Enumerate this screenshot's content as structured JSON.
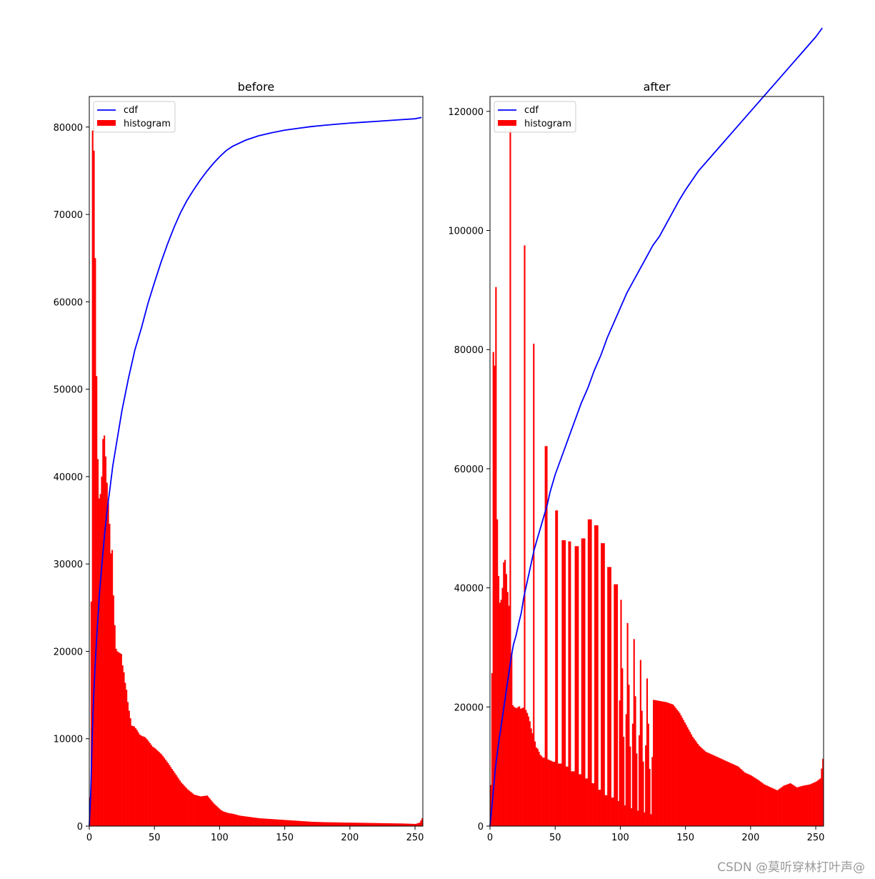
{
  "chart_data": [
    {
      "type": "bar",
      "title": "before",
      "xlim": [
        0,
        256
      ],
      "ylim": [
        0,
        83500
      ],
      "xticks": [
        0,
        50,
        100,
        150,
        200,
        250
      ],
      "yticks": [
        0,
        10000,
        20000,
        30000,
        40000,
        50000,
        60000,
        70000,
        80000
      ],
      "legend": {
        "placement": "top-left",
        "entries": [
          "cdf",
          "histogram"
        ]
      },
      "colors": {
        "cdf": "#0000ff",
        "histogram": "#ff0000"
      },
      "series": [
        {
          "name": "histogram",
          "kind": "bar",
          "x": [
            0,
            1,
            2,
            3,
            4,
            5,
            6,
            7,
            8,
            9,
            10,
            11,
            12,
            13,
            14,
            15,
            16,
            17,
            18,
            19,
            20,
            21,
            22,
            23,
            24,
            25,
            26,
            27,
            28,
            29,
            30,
            32,
            34,
            36,
            38,
            40,
            42,
            44,
            46,
            48,
            50,
            55,
            60,
            65,
            70,
            75,
            80,
            85,
            90,
            95,
            100,
            102,
            104,
            106,
            110,
            115,
            120,
            130,
            140,
            150,
            160,
            170,
            180,
            200,
            220,
            240,
            250,
            253,
            255
          ],
          "values": [
            3300,
            25700,
            79600,
            77300,
            65000,
            51500,
            42000,
            37500,
            38000,
            40000,
            44300,
            44700,
            42300,
            39300,
            37000,
            34600,
            31200,
            31600,
            26400,
            23000,
            20300,
            20000,
            19900,
            19800,
            19700,
            18400,
            17600,
            16400,
            15600,
            14200,
            13200,
            11500,
            11400,
            11000,
            10500,
            10300,
            10200,
            9900,
            9500,
            9100,
            8900,
            8200,
            7200,
            6100,
            5000,
            4200,
            3600,
            3400,
            3500,
            2600,
            1900,
            1700,
            1600,
            1500,
            1400,
            1200,
            1100,
            900,
            800,
            700,
            600,
            500,
            450,
            400,
            350,
            300,
            250,
            400,
            900
          ]
        },
        {
          "name": "cdf",
          "kind": "line",
          "x": [
            0,
            1,
            2,
            3,
            4,
            5,
            6,
            8,
            10,
            12,
            14,
            16,
            18,
            20,
            25,
            30,
            35,
            40,
            45,
            50,
            55,
            60,
            65,
            70,
            75,
            80,
            85,
            90,
            95,
            100,
            105,
            110,
            120,
            130,
            140,
            150,
            160,
            170,
            180,
            190,
            200,
            210,
            220,
            230,
            240,
            250,
            255
          ],
          "values": [
            100,
            3300,
            9000,
            13500,
            17000,
            19800,
            22400,
            27000,
            30500,
            33800,
            36500,
            38800,
            41200,
            43000,
            47500,
            51200,
            54500,
            57000,
            59800,
            62200,
            64500,
            66600,
            68500,
            70200,
            71600,
            72800,
            73900,
            74900,
            75800,
            76600,
            77300,
            77800,
            78500,
            79000,
            79350,
            79650,
            79850,
            80050,
            80200,
            80330,
            80450,
            80550,
            80650,
            80750,
            80850,
            80950,
            81100
          ]
        }
      ]
    },
    {
      "type": "bar",
      "title": "after",
      "xlim": [
        0,
        256
      ],
      "ylim": [
        0,
        122500
      ],
      "xticks": [
        0,
        50,
        100,
        150,
        200,
        250
      ],
      "yticks": [
        0,
        20000,
        40000,
        60000,
        80000,
        100000,
        120000
      ],
      "legend": {
        "placement": "top-left",
        "entries": [
          "cdf",
          "histogram"
        ]
      },
      "colors": {
        "cdf": "#0000ff",
        "histogram": "#ff0000"
      },
      "series": [
        {
          "name": "histogram",
          "kind": "bar",
          "x": [
            0,
            1,
            2,
            3,
            4,
            5,
            6,
            7,
            8,
            9,
            10,
            11,
            12,
            13,
            14,
            15,
            16,
            17,
            18,
            19,
            20,
            21,
            22,
            23,
            24,
            25,
            26,
            27,
            28,
            29,
            30,
            31,
            32,
            33,
            34,
            35,
            36,
            38,
            40,
            42,
            44,
            46,
            48,
            50,
            52,
            55,
            58,
            60,
            62,
            65,
            68,
            70,
            73,
            75,
            78,
            80,
            83,
            85,
            88,
            90,
            93,
            95,
            98,
            100,
            103,
            105,
            108,
            110,
            113,
            115,
            118,
            120,
            123,
            125,
            130,
            135,
            140,
            145,
            150,
            155,
            160,
            165,
            170,
            175,
            180,
            185,
            190,
            195,
            200,
            205,
            210,
            215,
            220,
            225,
            230,
            235,
            240,
            245,
            250,
            253,
            255
          ],
          "values": [
            6900,
            25700,
            79600,
            77300,
            90500,
            51500,
            42000,
            37500,
            38000,
            40000,
            44300,
            44700,
            42300,
            39300,
            37000,
            117000,
            29000,
            20300,
            20000,
            19900,
            19800,
            20000,
            20100,
            19700,
            19800,
            19900,
            97500,
            19500,
            19000,
            18400,
            17600,
            16400,
            15600,
            81000,
            14200,
            13200,
            13000,
            12000,
            11500,
            63800,
            11200,
            11000,
            10800,
            53000,
            10500,
            48000,
            10000,
            47800,
            9200,
            47000,
            8700,
            48300,
            8000,
            51500,
            7200,
            50500,
            6100,
            47500,
            5200,
            43500,
            4800,
            40600,
            4200,
            38000,
            3500,
            34100,
            3000,
            31400,
            2600,
            27900,
            2300,
            24800,
            2000,
            21200,
            21000,
            20800,
            20400,
            19000,
            17000,
            15000,
            13500,
            12500,
            12000,
            11500,
            11000,
            10500,
            10000,
            9000,
            8500,
            7800,
            7000,
            6500,
            6000,
            6800,
            7200,
            6500,
            6800,
            7000,
            7500,
            8000,
            11300
          ]
        },
        {
          "name": "cdf",
          "kind": "line",
          "x": [
            0,
            2,
            4,
            6,
            8,
            10,
            12,
            14,
            16,
            18,
            20,
            22,
            24,
            26,
            28,
            30,
            32,
            34,
            36,
            38,
            40,
            42,
            44,
            46,
            48,
            50,
            55,
            60,
            65,
            70,
            75,
            80,
            85,
            90,
            95,
            100,
            105,
            110,
            115,
            120,
            125,
            130,
            135,
            140,
            145,
            150,
            160,
            170,
            180,
            190,
            200,
            210,
            220,
            230,
            240,
            250,
            255
          ],
          "values": [
            100,
            4500,
            9500,
            13000,
            16000,
            19000,
            22000,
            25000,
            28000,
            30500,
            32000,
            34000,
            35800,
            38500,
            40500,
            42500,
            44500,
            46500,
            48000,
            49500,
            51000,
            52500,
            54000,
            56000,
            57500,
            59000,
            62000,
            65000,
            68000,
            71000,
            73500,
            76500,
            79000,
            82000,
            84500,
            87000,
            89500,
            91500,
            93500,
            95500,
            97500,
            99000,
            101000,
            103000,
            105000,
            106800,
            110000,
            112500,
            115000,
            117500,
            120000,
            122500,
            125000,
            127500,
            130000,
            132500,
            134000
          ]
        }
      ]
    }
  ],
  "watermark": "CSDN @莫听穿林打叶声@"
}
